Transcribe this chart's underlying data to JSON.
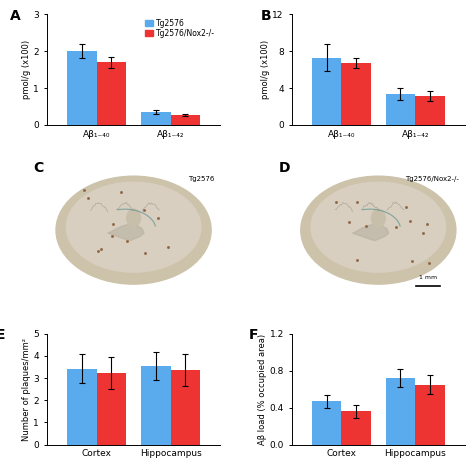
{
  "panel_A": {
    "label": "A",
    "groups": [
      "Aβ₁₋₄₀",
      "Aβ₁₋₄₂"
    ],
    "blue_vals": [
      2.0,
      0.35
    ],
    "red_vals": [
      1.7,
      0.27
    ],
    "blue_err": [
      0.18,
      0.05
    ],
    "red_err": [
      0.15,
      0.04
    ],
    "ylabel": "pmol/g (x100)",
    "ylim": [
      0,
      3
    ],
    "yticks": [
      0,
      1,
      2,
      3
    ]
  },
  "panel_B": {
    "label": "B",
    "groups": [
      "Aβ₁₋₄₀",
      "Aβ₁₋₄₂"
    ],
    "blue_vals": [
      7.3,
      3.4
    ],
    "red_vals": [
      6.7,
      3.1
    ],
    "blue_err": [
      1.5,
      0.65
    ],
    "red_err": [
      0.55,
      0.55
    ],
    "ylabel": "pmol/g (x100)",
    "ylim": [
      0,
      12
    ],
    "yticks": [
      0,
      4,
      8,
      12
    ]
  },
  "panel_E": {
    "label": "E",
    "groups": [
      "Cortex",
      "Hippocampus"
    ],
    "blue_vals": [
      3.42,
      3.55
    ],
    "red_vals": [
      3.22,
      3.37
    ],
    "blue_err": [
      0.65,
      0.65
    ],
    "red_err": [
      0.72,
      0.72
    ],
    "ylabel": "Number of plaques/mm²",
    "ylim": [
      0,
      5
    ],
    "yticks": [
      0,
      1,
      2,
      3,
      4,
      5
    ]
  },
  "panel_F": {
    "label": "F",
    "groups": [
      "Cortex",
      "Hippocampus"
    ],
    "blue_vals": [
      0.47,
      0.72
    ],
    "red_vals": [
      0.36,
      0.65
    ],
    "blue_err": [
      0.07,
      0.1
    ],
    "red_err": [
      0.07,
      0.1
    ],
    "ylabel": "Aβ load (% occupied area)",
    "ylim": [
      0,
      1.2
    ],
    "yticks": [
      0.0,
      0.4,
      0.8,
      1.2
    ]
  },
  "legend": {
    "blue_label": "Tg2576",
    "red_label": "Tg2576/Nox2-/-"
  },
  "panel_C_label": "C",
  "panel_D_label": "D",
  "panel_C_text": "Tg2576",
  "panel_D_text": "Tg2576/Nox2-/-",
  "scale_bar_text": "1 mm",
  "blue_color": "#5aaaee",
  "red_color": "#ee3333",
  "bg_color": "#ffffff",
  "tissue_bg": "#c8bfa8",
  "tissue_main": "#d8cbb5",
  "tissue_light": "#e4dac8"
}
